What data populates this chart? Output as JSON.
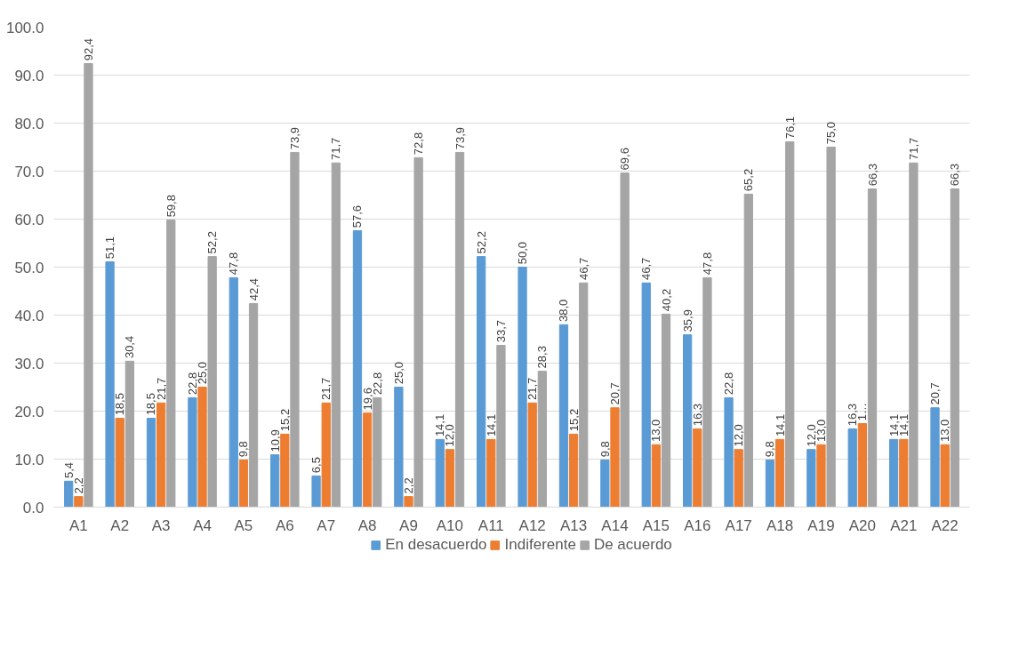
{
  "chart_data": {
    "type": "bar",
    "categories": [
      "A1",
      "A2",
      "A3",
      "A4",
      "A5",
      "A6",
      "A7",
      "A8",
      "A9",
      "A10",
      "A11",
      "A12",
      "A13",
      "A14",
      "A15",
      "A16",
      "A17",
      "A18",
      "A19",
      "A20",
      "A21",
      "A22"
    ],
    "series": [
      {
        "name": "En desacuerdo",
        "color": "#5b9bd5",
        "values": [
          5.4,
          51.1,
          18.5,
          22.8,
          47.8,
          10.9,
          6.5,
          57.6,
          25.0,
          14.1,
          52.2,
          50.0,
          38.0,
          9.8,
          46.7,
          35.9,
          22.8,
          9.8,
          12.0,
          16.3,
          14.1,
          20.7
        ],
        "value_labels": [
          "5,4",
          "51,1",
          "18,5",
          "22,8",
          "47,8",
          "10,9",
          "6,5",
          "57,6",
          "25,0",
          "14,1",
          "52,2",
          "50,0",
          "38,0",
          "9,8",
          "46,7",
          "35,9",
          "22,8",
          "9,8",
          "12,0",
          "16,3",
          "14,1",
          "20,7"
        ]
      },
      {
        "name": "Indiferente",
        "color": "#ed7d31",
        "values": [
          2.2,
          18.5,
          21.7,
          25.0,
          9.8,
          15.2,
          21.7,
          19.6,
          2.2,
          12.0,
          14.1,
          21.7,
          15.2,
          20.7,
          13.0,
          16.3,
          12.0,
          14.1,
          13.0,
          17.4,
          14.1,
          13.0
        ],
        "value_labels": [
          "2,2",
          "18,5",
          "21,7",
          "25,0",
          "9,8",
          "15,2",
          "21,7",
          "19,6",
          "2,2",
          "12,0",
          "14,1",
          "21,7",
          "15,2",
          "20,7",
          "13,0",
          "16,3",
          "12,0",
          "14,1",
          "13,0",
          "1…",
          "14,1",
          "13,0"
        ]
      },
      {
        "name": "De acuerdo",
        "color": "#a5a5a5",
        "values": [
          92.4,
          30.4,
          59.8,
          52.2,
          42.4,
          73.9,
          71.7,
          22.8,
          72.8,
          73.9,
          33.7,
          28.3,
          46.7,
          69.6,
          40.2,
          47.8,
          65.2,
          76.1,
          75.0,
          66.3,
          71.7,
          66.3
        ],
        "value_labels": [
          "92,4",
          "30,4",
          "59,8",
          "52,2",
          "42,4",
          "73,9",
          "71,7",
          "22,8",
          "72,8",
          "73,9",
          "33,7",
          "28,3",
          "46,7",
          "69,6",
          "40,2",
          "47,8",
          "65,2",
          "76,1",
          "75,0",
          "66,3",
          "71,7",
          "66,3"
        ]
      }
    ],
    "ylim": [
      0,
      100
    ],
    "yticks": [
      {
        "value": 0,
        "label": "0.0"
      },
      {
        "value": 10,
        "label": "10.0"
      },
      {
        "value": 20,
        "label": "20.0"
      },
      {
        "value": 30,
        "label": "30.0"
      },
      {
        "value": 40,
        "label": "40.0"
      },
      {
        "value": 50,
        "label": "50.0"
      },
      {
        "value": 60,
        "label": "60.0"
      },
      {
        "value": 70,
        "label": "70.0"
      },
      {
        "value": 80,
        "label": "80.0"
      },
      {
        "value": 90,
        "label": "90.0"
      },
      {
        "value": 100,
        "label": "100.0"
      }
    ],
    "grid": "y",
    "legend": "bottom"
  }
}
